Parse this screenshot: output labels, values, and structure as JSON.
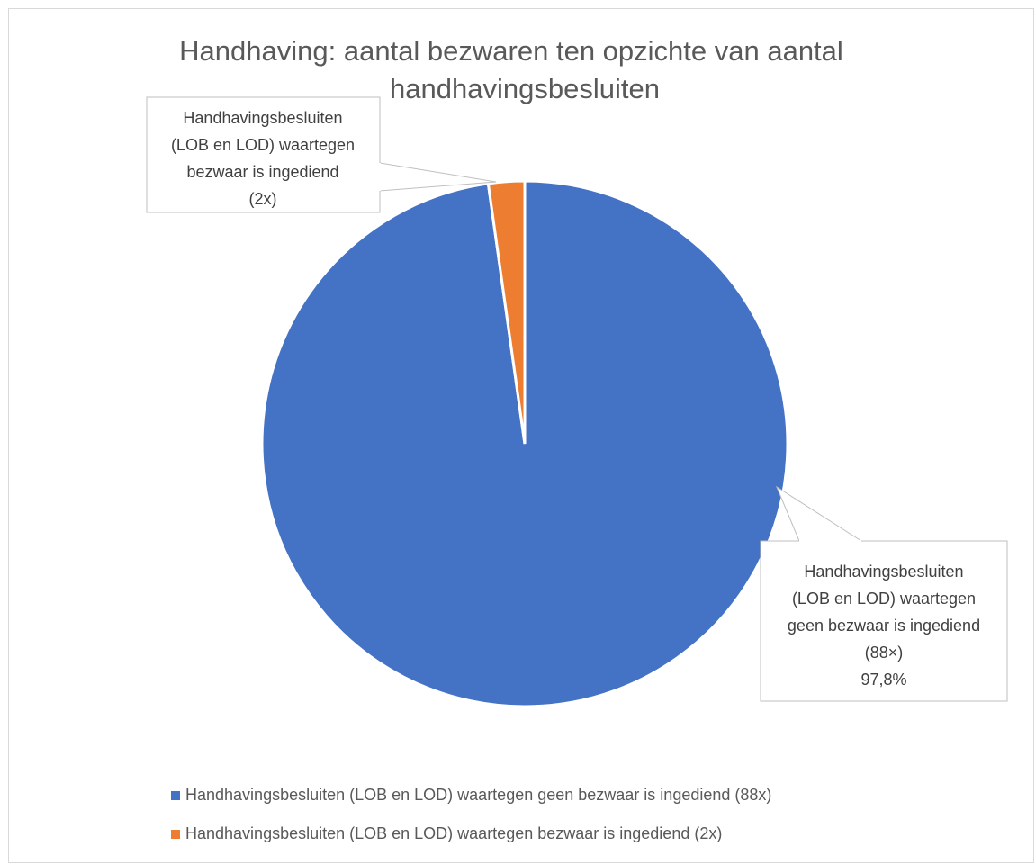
{
  "chart_data": {
    "type": "pie",
    "title_lines": [
      "Handhaving: aantal bezwaren ten opzichte van aantal",
      "handhavingsbesluiten"
    ],
    "slices": [
      {
        "label": "Handhavingsbesluiten (LOB en LOD) waartegen geen bezwaar is ingediend (88x)",
        "value": 88,
        "color": "#4472c4",
        "callout_lines": [
          "Handhavingsbesluiten",
          "(LOB en LOD) waartegen",
          "geen bezwaar is ingediend",
          "(88×)",
          "97,8%"
        ]
      },
      {
        "label": "Handhavingsbesluiten (LOB en LOD) waartegen bezwaar is ingediend (2x)",
        "value": 2,
        "color": "#ed7d31",
        "callout_lines": [
          "Handhavingsbesluiten",
          "(LOB en LOD) waartegen",
          "bezwaar is ingediend",
          "(2x)"
        ]
      }
    ],
    "legend_position": "bottom"
  }
}
